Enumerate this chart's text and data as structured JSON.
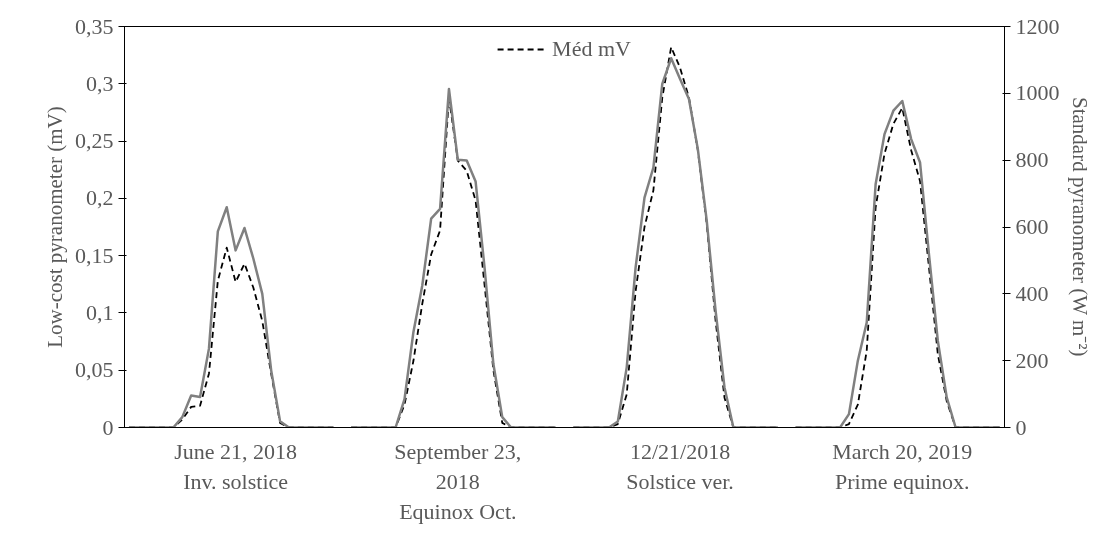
{
  "chart_data": {
    "type": "line",
    "categories": [
      null,
      null,
      null,
      null,
      null,
      null,
      null,
      null,
      null,
      null,
      null,
      null,
      "June 21, 2018\nInv. solstice",
      null,
      null,
      null,
      null,
      null,
      null,
      null,
      null,
      null,
      null,
      null,
      null,
      null,
      null,
      null,
      null,
      null,
      null,
      null,
      null,
      null,
      null,
      null,
      null,
      "September 23,\n2018\nEquinox Oct.",
      null,
      null,
      null,
      null,
      null,
      null,
      null,
      null,
      null,
      null,
      null,
      null,
      null,
      null,
      null,
      null,
      null,
      null,
      null,
      null,
      null,
      null,
      null,
      null,
      "12/21/2018\nSolstice ver.",
      null,
      null,
      null,
      null,
      null,
      null,
      null,
      null,
      null,
      null,
      null,
      null,
      null,
      null,
      null,
      null,
      null,
      null,
      null,
      null,
      null,
      null,
      null,
      null,
      "March 20, 2019\nPrime equinox.",
      null,
      null,
      null,
      null,
      null,
      null,
      null,
      null,
      null,
      null,
      null
    ],
    "ylabel": "Low-cost pyranometer (mV)",
    "y2label": "Standard pyranometer (W m⁻²)",
    "ylim": [
      0,
      0.35
    ],
    "yticks": [
      0,
      {
        "value": 0.05,
        "label": "0,05"
      },
      {
        "value": 0.1,
        "label": "0,1"
      },
      {
        "value": 0.15,
        "label": "0,15"
      },
      {
        "value": 0.2,
        "label": "0,2"
      },
      {
        "value": 0.25,
        "label": "0,25"
      },
      {
        "value": 0.3,
        "label": "0,3"
      },
      {
        "value": 0.35,
        "label": "0,35"
      }
    ],
    "y2lim": [
      0,
      1200
    ],
    "y2ticks": [
      0,
      200,
      400,
      600,
      800,
      1000,
      1200
    ],
    "legend": "top",
    "grid": false,
    "series": [
      {
        "name": "Méd mV",
        "color": "#000000",
        "line_style": "dashed",
        "values": [
          0,
          0,
          0,
          0,
          0,
          0,
          0.007,
          0.018,
          0.019,
          0.047,
          0.128,
          0.157,
          0.127,
          0.143,
          0.122,
          0.093,
          0.047,
          0.004,
          0,
          0,
          0,
          0,
          0,
          0,
          null,
          0,
          0,
          0,
          0,
          0,
          0,
          0.02,
          0.058,
          0.108,
          0.151,
          0.172,
          0.288,
          0.233,
          0.224,
          0.198,
          0.125,
          0.05,
          0.004,
          0,
          0,
          0,
          0,
          0,
          0,
          null,
          0,
          0,
          0,
          0,
          0,
          0.003,
          0.029,
          0.119,
          0.175,
          0.207,
          0.288,
          0.332,
          0.314,
          0.288,
          0.242,
          0.178,
          0.093,
          0.026,
          0,
          0,
          0,
          0,
          0,
          0,
          null,
          0,
          0,
          0,
          0,
          0,
          0,
          0.003,
          0.02,
          0.067,
          0.192,
          0.239,
          0.265,
          0.279,
          0.242,
          0.215,
          0.14,
          0.064,
          0.023,
          0,
          0,
          0,
          0,
          0,
          0
        ]
      },
      {
        "color": "#808080",
        "line_style": "solid",
        "axis": "y2",
        "values": [
          0,
          0,
          0,
          0,
          0,
          0,
          31,
          96,
          91,
          236,
          587,
          659,
          530,
          597,
          505,
          400,
          171,
          19,
          0,
          0,
          0,
          0,
          0,
          0,
          null,
          0,
          0,
          0,
          0,
          0,
          0,
          85,
          285,
          425,
          625,
          654,
          1013,
          801,
          799,
          736,
          480,
          190,
          31,
          0,
          0,
          0,
          0,
          0,
          0,
          null,
          0,
          0,
          0,
          0,
          0,
          18,
          180,
          479,
          688,
          778,
          1028,
          1105,
          1043,
          983,
          833,
          619,
          349,
          120,
          0,
          0,
          0,
          0,
          0,
          0,
          null,
          0,
          0,
          0,
          0,
          0,
          0,
          40,
          200,
          314,
          728,
          878,
          948,
          977,
          863,
          793,
          519,
          259,
          90,
          0,
          0,
          0,
          0,
          0,
          0
        ]
      }
    ]
  }
}
